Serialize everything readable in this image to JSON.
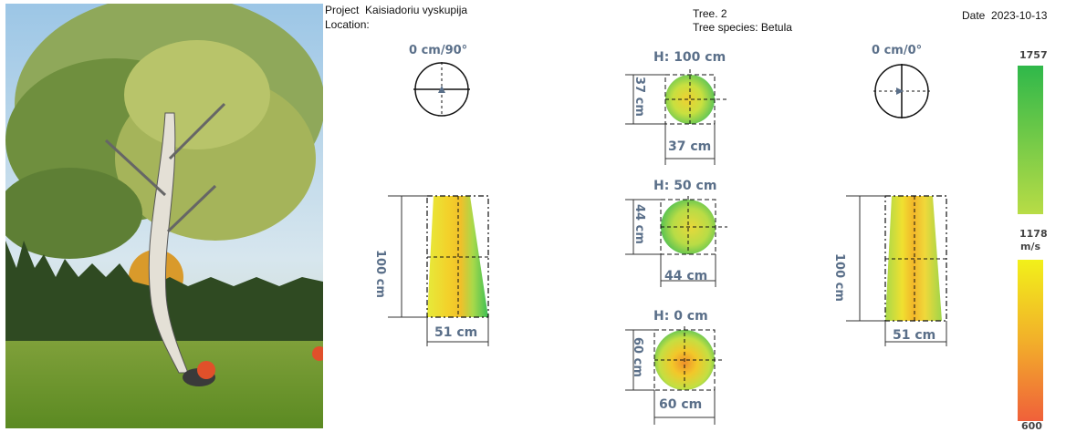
{
  "header": {
    "project_label": "Project",
    "project_value": "Kaisiadoriu vyskupija",
    "location_label": "Location:",
    "tree_line": "Tree. 2",
    "species_line": "Tree species: Betula",
    "date_label": "Date",
    "date_value": "2023-10-13"
  },
  "views": {
    "compass_left": "0 cm/90°",
    "compass_right": "0 cm/0°",
    "side_left": {
      "height": "100 cm",
      "width": "51 cm"
    },
    "side_right": {
      "height": "100 cm",
      "width": "51 cm"
    }
  },
  "sections": [
    {
      "title": "H: 100 cm",
      "diameter_v": "37 cm",
      "diameter_h": "37 cm"
    },
    {
      "title": "H: 50 cm",
      "diameter_v": "44 cm",
      "diameter_h": "44 cm"
    },
    {
      "title": "H: 0 cm",
      "diameter_v": "60 cm",
      "diameter_h": "60 cm"
    }
  ],
  "scale": {
    "max": "1757",
    "mid": "1178",
    "unit": "m/s",
    "min": "600",
    "color_high": "#2fb84a",
    "color_mid": "#f2f01a",
    "color_low": "#f0603a"
  }
}
